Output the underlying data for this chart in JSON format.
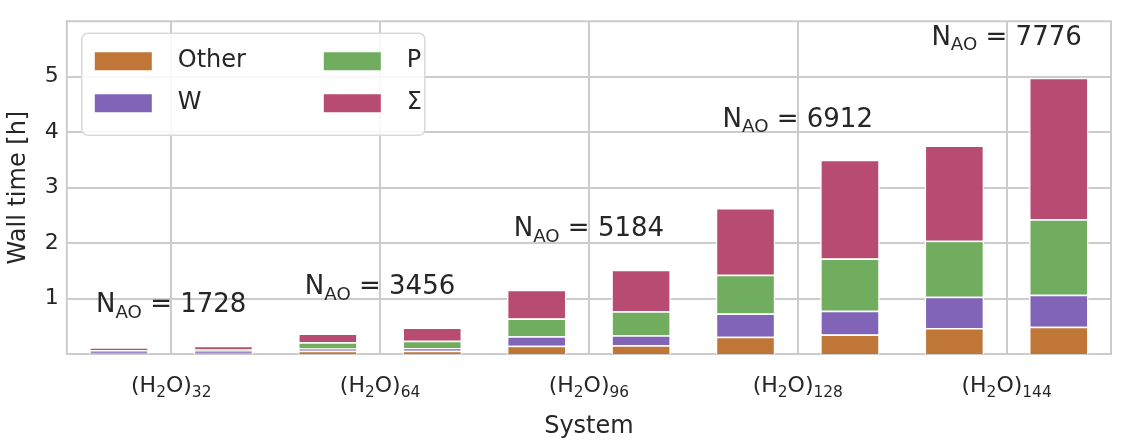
{
  "chart_data": {
    "type": "bar",
    "stacked": true,
    "xlabel": "System",
    "ylabel": "Wall time [h]",
    "categories": [
      "(H$_{2}$O)$_{32}$",
      null,
      "(H$_{2}$O)$_{64}$",
      null,
      "(H$_{2}$O)$_{96}$",
      null,
      "(H$_{2}$O)$_{128}$",
      null,
      "(H$_{2}$O)$_{144}$",
      null
    ],
    "series": [
      {
        "name": "Other",
        "color": "#bf7636",
        "values": [
          0.02,
          0.02,
          0.06,
          0.06,
          0.15,
          0.16,
          0.31,
          0.35,
          0.47,
          0.49
        ]
      },
      {
        "name": "W",
        "color": "#8163b8",
        "values": [
          0.02,
          0.02,
          0.04,
          0.05,
          0.17,
          0.18,
          0.42,
          0.43,
          0.56,
          0.58
        ]
      },
      {
        "name": "P",
        "color": "#71ad5e",
        "values": [
          0.03,
          0.04,
          0.11,
          0.13,
          0.32,
          0.43,
          0.7,
          0.94,
          1.01,
          1.36
        ]
      },
      {
        "name": "Σ",
        "color": "#b84b72",
        "values": [
          0.05,
          0.07,
          0.16,
          0.24,
          0.52,
          0.75,
          1.2,
          1.78,
          1.72,
          2.55
        ]
      }
    ],
    "ylim": [
      0,
      6
    ],
    "yticks": [
      1,
      2,
      3,
      4,
      5
    ],
    "grid": true,
    "legend": "top left",
    "annotations": [
      "N$_{AO}$ = 1728",
      "N$_{AO}$ = 3456",
      "N$_{AO}$ = 5184",
      "N$_{AO}$ = 6912",
      "N$_{AO}$ = 7776"
    ]
  }
}
